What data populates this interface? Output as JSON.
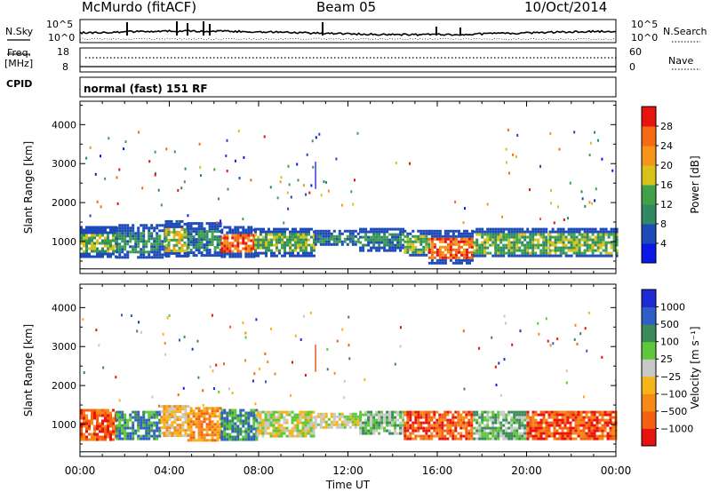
{
  "header": {
    "station": "McMurdo (fitACF)",
    "beam": "Beam 05",
    "date": "10/Oct/2014"
  },
  "top_panels": {
    "nsky_label": "N.Sky",
    "nsky_ticks": [
      "10^5",
      "10^0"
    ],
    "nsearch_label": "N.Search",
    "nsearch_ticks": [
      "10^5",
      "10^0"
    ],
    "freq_label": "Freq.",
    "freq_unit": "[MHz]",
    "freq_ticks": [
      "18",
      "8"
    ],
    "nave_label": "Nave",
    "nave_ticks": [
      "60",
      "0"
    ],
    "cpid_label": "CPID",
    "cpid_value": "normal (fast) 151 RF"
  },
  "chart_data": [
    {
      "type": "heatmap",
      "name": "power-panel",
      "ylabel": "Slant Range [km]",
      "yticks": [
        1000,
        2000,
        3000,
        4000
      ],
      "ylim": [
        180,
        4600
      ],
      "xlim": [
        0,
        24
      ],
      "colorbar": {
        "label": "Power [dB]",
        "ticks": [
          "4",
          "8",
          "12",
          "16",
          "20",
          "24",
          "28"
        ],
        "colors": [
          "#0a18e6",
          "#1c4ab8",
          "#2f8a62",
          "#3fa24a",
          "#d8c21a",
          "#f59418",
          "#f56a12",
          "#e8120e"
        ]
      },
      "scatter_bands": [
        {
          "t0": 0.0,
          "t1": 1.6,
          "r0": 600,
          "r1": 1400,
          "level": 3
        },
        {
          "t0": 1.6,
          "t1": 3.8,
          "r0": 600,
          "r1": 1450,
          "level": 2
        },
        {
          "t0": 3.8,
          "t1": 4.8,
          "r0": 650,
          "r1": 1550,
          "level": 4
        },
        {
          "t0": 4.8,
          "t1": 6.3,
          "r0": 650,
          "r1": 1500,
          "level": 2
        },
        {
          "t0": 6.3,
          "t1": 7.8,
          "r0": 600,
          "r1": 1400,
          "level": 6
        },
        {
          "t0": 7.8,
          "t1": 10.5,
          "r0": 650,
          "r1": 1350,
          "level": 3
        },
        {
          "t0": 10.5,
          "t1": 12.5,
          "r0": 900,
          "r1": 1300,
          "level": 2
        },
        {
          "t0": 12.5,
          "t1": 14.5,
          "r0": 800,
          "r1": 1350,
          "level": 2
        },
        {
          "t0": 14.5,
          "t1": 15.6,
          "r0": 650,
          "r1": 1300,
          "level": 3
        },
        {
          "t0": 15.6,
          "t1": 17.6,
          "r0": 450,
          "r1": 1300,
          "level": 6
        },
        {
          "t0": 17.6,
          "t1": 21.0,
          "r0": 600,
          "r1": 1350,
          "level": 3
        },
        {
          "t0": 21.0,
          "t1": 24.0,
          "r0": 600,
          "r1": 1350,
          "level": 3
        }
      ],
      "spikes": [
        {
          "t": 10.55,
          "r0": 2350,
          "r1": 3050,
          "color": "#3a3ad0"
        }
      ]
    },
    {
      "type": "heatmap",
      "name": "velocity-panel",
      "ylabel": "Slant Range [km]",
      "yticks": [
        1000,
        2000,
        3000,
        4000
      ],
      "ylim": [
        180,
        4600
      ],
      "xlim": [
        0,
        24
      ],
      "xticks": [
        "00:00",
        "04:00",
        "08:00",
        "12:00",
        "16:00",
        "20:00",
        "00:00"
      ],
      "xlabel": "Time UT",
      "colorbar": {
        "label": "Velocity [m s⁻¹]",
        "ticks": [
          "1000",
          "500",
          "100",
          "25",
          "−25",
          "−100",
          "−500",
          "−1000"
        ],
        "colors": [
          "#1e2ad2",
          "#2f5ec8",
          "#3a8a5a",
          "#5ec83a",
          "#c8c8c8",
          "#f5b418",
          "#f58a18",
          "#f56012",
          "#e8120e"
        ]
      },
      "scatter_bands": [
        {
          "t0": 0.0,
          "t1": 1.6,
          "r0": 600,
          "r1": 1400,
          "level": 7
        },
        {
          "t0": 1.6,
          "t1": 3.6,
          "r0": 600,
          "r1": 1350,
          "level": 2
        },
        {
          "t0": 3.6,
          "t1": 4.8,
          "r0": 700,
          "r1": 1500,
          "level": 5
        },
        {
          "t0": 4.8,
          "t1": 6.3,
          "r0": 600,
          "r1": 1450,
          "level": 6
        },
        {
          "t0": 6.3,
          "t1": 7.9,
          "r0": 600,
          "r1": 1400,
          "level": 2
        },
        {
          "t0": 7.9,
          "t1": 10.5,
          "r0": 700,
          "r1": 1350,
          "level": 4
        },
        {
          "t0": 10.5,
          "t1": 12.5,
          "r0": 900,
          "r1": 1300,
          "level": 4
        },
        {
          "t0": 12.5,
          "t1": 14.5,
          "r0": 800,
          "r1": 1350,
          "level": 3
        },
        {
          "t0": 14.5,
          "t1": 17.6,
          "r0": 650,
          "r1": 1350,
          "level": 7
        },
        {
          "t0": 17.6,
          "t1": 20.0,
          "r0": 600,
          "r1": 1350,
          "level": 3
        },
        {
          "t0": 20.0,
          "t1": 24.0,
          "r0": 600,
          "r1": 1350,
          "level": 7
        }
      ],
      "spikes": [
        {
          "t": 10.55,
          "r0": 2350,
          "r1": 3050,
          "color": "#e06020"
        }
      ]
    }
  ]
}
